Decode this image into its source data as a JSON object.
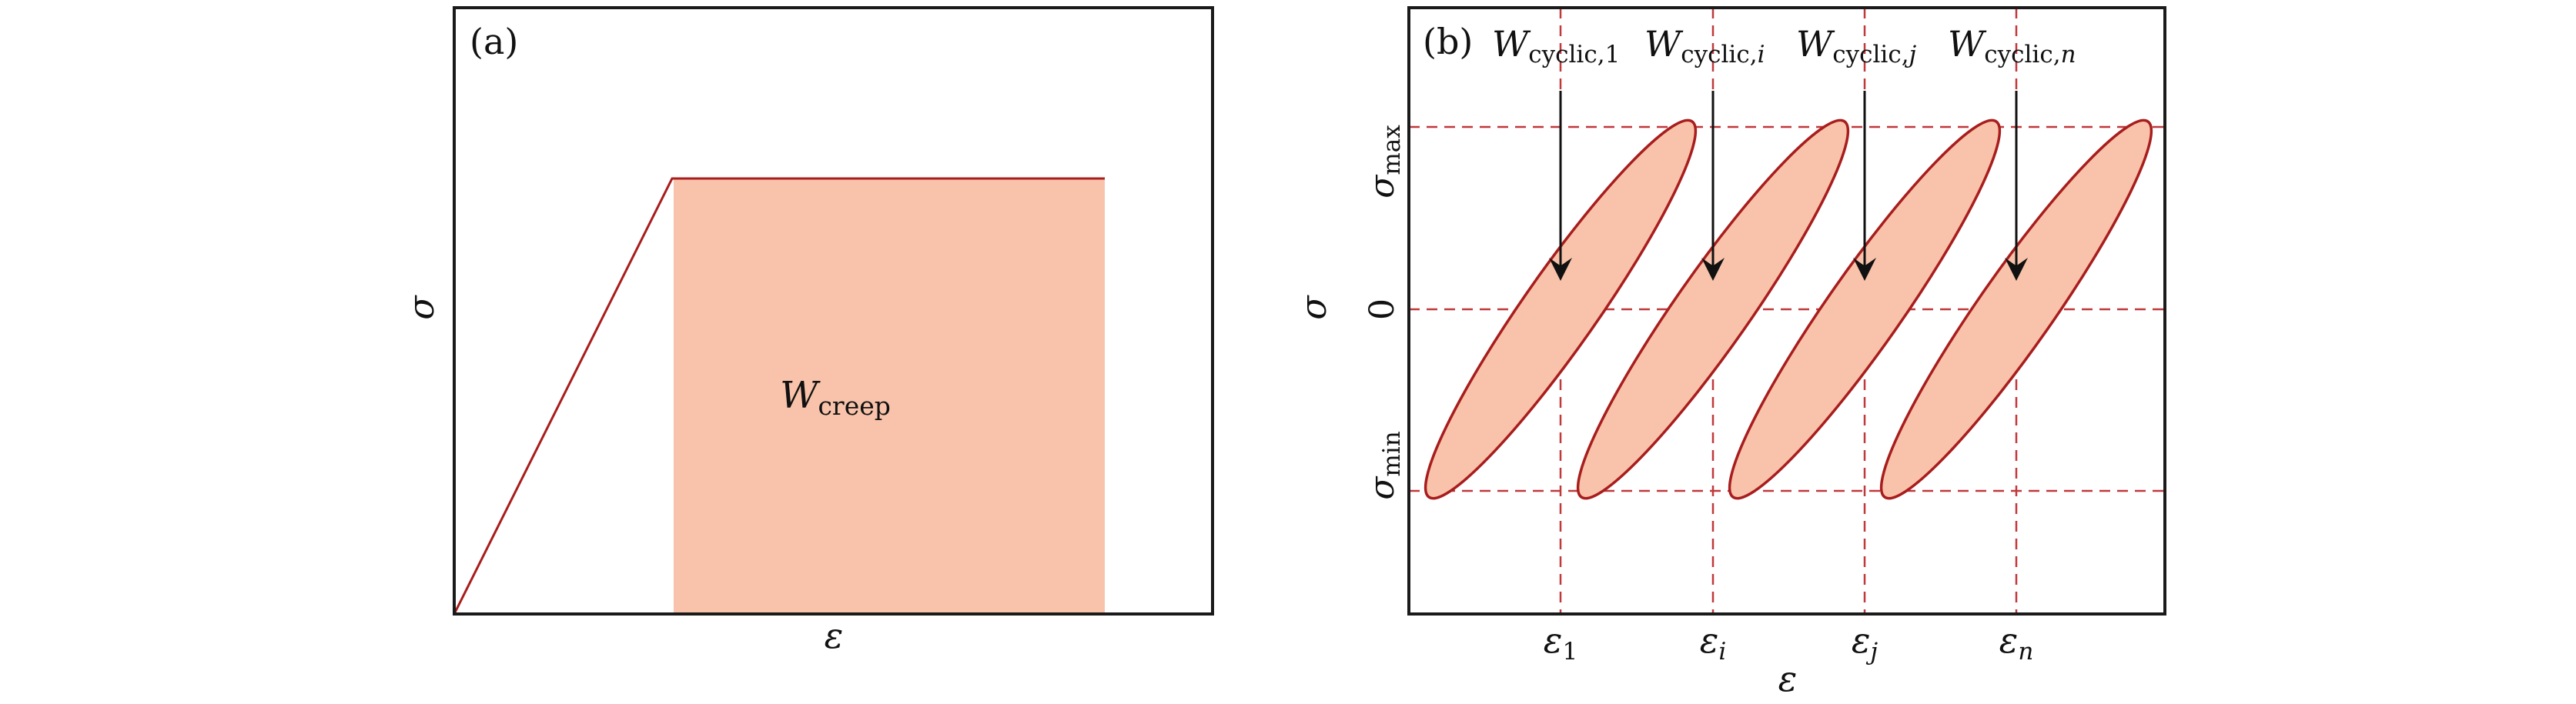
{
  "panel_a": {
    "label": "(a)",
    "y_symbol": "σ",
    "x_symbol": "ε",
    "region": {
      "symbol": "W",
      "subscript": "creep"
    },
    "colors": {
      "line": "#a81d1d",
      "fill": "#f8c3aa"
    }
  },
  "panel_b": {
    "label": "(b)",
    "y_symbol": "σ",
    "x_symbol": "ε",
    "y_ticks": [
      {
        "symbol": "σ",
        "subscript": "max"
      },
      {
        "symbol": "0",
        "subscript": ""
      },
      {
        "symbol": "σ",
        "subscript": "min"
      }
    ],
    "loops": [
      {
        "work_symbol": "W",
        "work_subscript": "cyclic,",
        "work_index": "1",
        "strain_symbol": "ε",
        "strain_index": "1"
      },
      {
        "work_symbol": "W",
        "work_subscript": "cyclic,",
        "work_index": "i",
        "strain_symbol": "ε",
        "strain_index": "i"
      },
      {
        "work_symbol": "W",
        "work_subscript": "cyclic,",
        "work_index": "j",
        "strain_symbol": "ε",
        "strain_index": "j"
      },
      {
        "work_symbol": "W",
        "work_subscript": "cyclic,",
        "work_index": "n",
        "strain_symbol": "ε",
        "strain_index": "n"
      }
    ],
    "colors": {
      "grid": "#c0393b",
      "loop_edge": "#a81d1d",
      "loop_fill": "#f8c3aa",
      "arrow": "#111111"
    }
  }
}
